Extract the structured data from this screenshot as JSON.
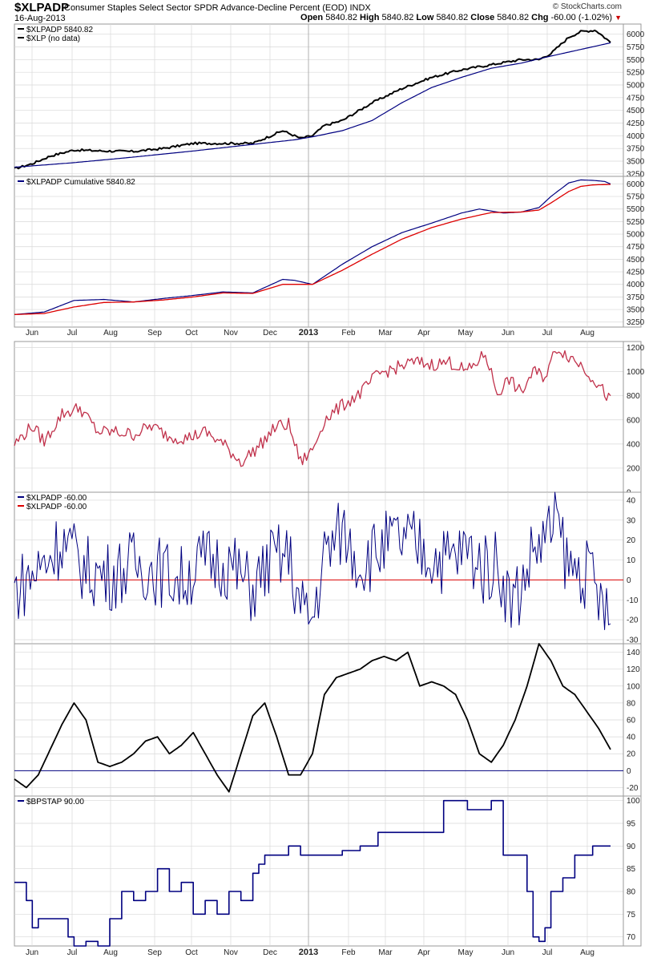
{
  "header": {
    "symbol": "$XLPADP",
    "description": "Consumer Staples Select Sector SPDR Advance-Decline Percent (EOD)",
    "exchange": "INDX",
    "date": "16-Aug-2013",
    "source": "© StockCharts.com",
    "open_label": "Open",
    "open": "5840.82",
    "high_label": "High",
    "high": "5840.82",
    "low_label": "Low",
    "low": "5840.82",
    "close_label": "Close",
    "close": "5840.82",
    "chg_label": "Chg",
    "chg": "-60.00 (-1.02%)",
    "down_color": "#cc0000"
  },
  "colors": {
    "black": "#000000",
    "navy": "#000080",
    "red": "#dd0000",
    "crimson": "#c0304a",
    "grid": "#d8d8d8"
  },
  "chart_data": [
    {
      "type": "line",
      "legend": [
        {
          "label": "$XLPADP  5840.82",
          "color": "#000000"
        },
        {
          "label": "$XLP (no data)",
          "color": "#000000"
        }
      ],
      "ylim": [
        3200,
        6200
      ],
      "yticks": [
        3250,
        3500,
        3750,
        4000,
        4250,
        4500,
        4750,
        5000,
        5250,
        5500,
        5750,
        6000
      ],
      "series": [
        {
          "color": "#000000",
          "width": 2,
          "volatility": 22,
          "x": [
            0,
            0.03,
            0.06,
            0.1,
            0.15,
            0.2,
            0.25,
            0.3,
            0.35,
            0.4,
            0.45,
            0.48,
            0.5,
            0.52,
            0.55,
            0.6,
            0.65,
            0.7,
            0.75,
            0.8,
            0.85,
            0.88,
            0.9,
            0.93,
            0.95,
            0.975,
            1.0
          ],
          "y": [
            3350,
            3450,
            3600,
            3720,
            3700,
            3690,
            3750,
            3850,
            3850,
            3850,
            4100,
            3950,
            4000,
            4200,
            4300,
            4650,
            4930,
            5150,
            5300,
            5400,
            5500,
            5500,
            5620,
            5940,
            6050,
            6080,
            5840
          ]
        },
        {
          "color": "#000080",
          "width": 1.2,
          "volatility": 0,
          "x": [
            0,
            0.1,
            0.2,
            0.3,
            0.4,
            0.47,
            0.5,
            0.55,
            0.6,
            0.65,
            0.7,
            0.75,
            0.8,
            0.85,
            0.9,
            0.95,
            1.0
          ],
          "y": [
            3380,
            3470,
            3580,
            3700,
            3830,
            3920,
            3980,
            4100,
            4300,
            4650,
            4950,
            5150,
            5330,
            5430,
            5570,
            5700,
            5830
          ]
        }
      ]
    },
    {
      "type": "line",
      "legend": [
        {
          "label": "$XLPADP  Cumulative 5840.82",
          "color": "#000080"
        }
      ],
      "ylim": [
        3150,
        6150
      ],
      "yticks": [
        3250,
        3500,
        3750,
        4000,
        4250,
        4500,
        4750,
        5000,
        5250,
        5500,
        5750,
        6000
      ],
      "xticks": [
        "Jun",
        "Jul",
        "Aug",
        "Sep",
        "Oct",
        "Nov",
        "Dec",
        "2013",
        "Feb",
        "Mar",
        "Apr",
        "May",
        "Jun",
        "Jul",
        "Aug"
      ],
      "series": [
        {
          "color": "#000080",
          "width": 1.2,
          "volatility": 0,
          "x": [
            0,
            0.05,
            0.1,
            0.15,
            0.2,
            0.25,
            0.3,
            0.35,
            0.4,
            0.45,
            0.47,
            0.5,
            0.55,
            0.6,
            0.65,
            0.7,
            0.75,
            0.78,
            0.82,
            0.85,
            0.88,
            0.9,
            0.93,
            0.95,
            0.97,
            0.99,
            1.0
          ],
          "y": [
            3400,
            3450,
            3680,
            3700,
            3650,
            3720,
            3780,
            3850,
            3830,
            4100,
            4080,
            4000,
            4400,
            4750,
            5030,
            5220,
            5420,
            5500,
            5420,
            5440,
            5530,
            5750,
            6020,
            6080,
            6070,
            6050,
            6000
          ]
        },
        {
          "color": "#dd0000",
          "width": 1.3,
          "volatility": 0,
          "x": [
            0,
            0.05,
            0.1,
            0.15,
            0.2,
            0.25,
            0.3,
            0.35,
            0.4,
            0.45,
            0.5,
            0.55,
            0.6,
            0.65,
            0.7,
            0.75,
            0.8,
            0.85,
            0.88,
            0.9,
            0.93,
            0.95,
            0.97,
            1.0
          ],
          "y": [
            3400,
            3420,
            3550,
            3640,
            3650,
            3690,
            3750,
            3830,
            3820,
            4000,
            4000,
            4280,
            4600,
            4900,
            5130,
            5300,
            5430,
            5440,
            5480,
            5620,
            5850,
            5950,
            5980,
            5990
          ]
        }
      ]
    },
    {
      "type": "line",
      "legend": [],
      "ylim": [
        0,
        1250
      ],
      "yticks": [
        0,
        200,
        400,
        600,
        800,
        1000,
        1200
      ],
      "series": [
        {
          "color": "#c0304a",
          "width": 1.3,
          "volatility": 55,
          "x": [
            0,
            0.03,
            0.05,
            0.08,
            0.11,
            0.14,
            0.17,
            0.2,
            0.23,
            0.26,
            0.29,
            0.32,
            0.35,
            0.38,
            0.41,
            0.44,
            0.46,
            0.48,
            0.5,
            0.52,
            0.55,
            0.58,
            0.61,
            0.64,
            0.67,
            0.7,
            0.73,
            0.76,
            0.79,
            0.81,
            0.83,
            0.85,
            0.87,
            0.89,
            0.91,
            0.93,
            0.95,
            0.97,
            1.0
          ],
          "y": [
            400,
            550,
            420,
            650,
            700,
            500,
            500,
            480,
            550,
            460,
            450,
            500,
            400,
            250,
            380,
            550,
            560,
            250,
            350,
            600,
            720,
            820,
            980,
            1030,
            1080,
            1060,
            1080,
            1000,
            1150,
            820,
            940,
            820,
            1000,
            960,
            1200,
            1130,
            1060,
            950,
            760
          ]
        }
      ]
    },
    {
      "type": "line",
      "legend": [
        {
          "label": "$XLPADP  -60.00",
          "color": "#000080"
        },
        {
          "label": "$XLPADP  -60.00",
          "color": "#dd0000"
        }
      ],
      "ylim": [
        -32,
        44
      ],
      "yticks": [
        -30,
        -20,
        -10,
        0,
        10,
        20,
        30,
        40
      ],
      "zero_line": {
        "value": 0,
        "color": "#dd0000"
      },
      "series": [
        {
          "color": "#000080",
          "width": 1,
          "volatility": 18,
          "x": [
            0,
            0.04,
            0.08,
            0.12,
            0.16,
            0.2,
            0.24,
            0.28,
            0.32,
            0.36,
            0.4,
            0.43,
            0.46,
            0.48,
            0.5,
            0.52,
            0.55,
            0.58,
            0.61,
            0.64,
            0.67,
            0.7,
            0.73,
            0.76,
            0.79,
            0.81,
            0.83,
            0.85,
            0.87,
            0.89,
            0.91,
            0.93,
            0.95,
            0.97,
            1.0
          ],
          "y": [
            -5,
            5,
            20,
            5,
            2,
            8,
            5,
            0,
            10,
            8,
            -5,
            10,
            12,
            -15,
            -20,
            12,
            25,
            8,
            15,
            20,
            18,
            12,
            10,
            15,
            5,
            10,
            -10,
            -5,
            15,
            20,
            30,
            5,
            5,
            0,
            -25
          ]
        }
      ]
    },
    {
      "type": "line",
      "legend": [],
      "ylim": [
        -30,
        150
      ],
      "yticks": [
        -20,
        0,
        20,
        40,
        60,
        80,
        100,
        120,
        140
      ],
      "zero_line": {
        "value": 0,
        "color": "#000080"
      },
      "series": [
        {
          "color": "#000000",
          "width": 1.8,
          "volatility": 0,
          "x": [
            0,
            0.02,
            0.04,
            0.06,
            0.08,
            0.1,
            0.12,
            0.14,
            0.16,
            0.18,
            0.2,
            0.22,
            0.24,
            0.26,
            0.28,
            0.3,
            0.32,
            0.34,
            0.36,
            0.38,
            0.4,
            0.42,
            0.44,
            0.46,
            0.48,
            0.5,
            0.52,
            0.54,
            0.56,
            0.58,
            0.6,
            0.62,
            0.64,
            0.66,
            0.68,
            0.7,
            0.72,
            0.74,
            0.76,
            0.78,
            0.8,
            0.82,
            0.84,
            0.86,
            0.88,
            0.9,
            0.92,
            0.94,
            0.96,
            0.98,
            1.0
          ],
          "y": [
            -10,
            -20,
            -5,
            25,
            55,
            80,
            60,
            10,
            5,
            10,
            20,
            35,
            40,
            20,
            30,
            45,
            20,
            -5,
            -25,
            20,
            65,
            80,
            40,
            -5,
            -5,
            20,
            90,
            110,
            115,
            120,
            130,
            135,
            130,
            140,
            100,
            105,
            100,
            90,
            60,
            20,
            10,
            30,
            60,
            100,
            150,
            130,
            100,
            90,
            70,
            50,
            25
          ]
        }
      ]
    },
    {
      "type": "line",
      "legend": [
        {
          "label": "$BPSTAP  90.00",
          "color": "#000080"
        }
      ],
      "ylim": [
        68,
        101
      ],
      "yticks": [
        70,
        75,
        80,
        85,
        90,
        95,
        100
      ],
      "step": true,
      "xticks": [
        "Jun",
        "Jul",
        "Aug",
        "Sep",
        "Oct",
        "Nov",
        "Dec",
        "2013",
        "Feb",
        "Mar",
        "Apr",
        "May",
        "Jun",
        "Jul",
        "Aug"
      ],
      "series": [
        {
          "color": "#000080",
          "width": 1.6,
          "volatility": 0,
          "x": [
            0,
            0.02,
            0.03,
            0.04,
            0.06,
            0.09,
            0.1,
            0.12,
            0.14,
            0.16,
            0.18,
            0.2,
            0.22,
            0.24,
            0.26,
            0.28,
            0.3,
            0.32,
            0.34,
            0.36,
            0.38,
            0.4,
            0.41,
            0.42,
            0.44,
            0.46,
            0.48,
            0.5,
            0.52,
            0.55,
            0.58,
            0.61,
            0.64,
            0.67,
            0.7,
            0.72,
            0.74,
            0.76,
            0.78,
            0.8,
            0.82,
            0.84,
            0.86,
            0.87,
            0.88,
            0.89,
            0.9,
            0.92,
            0.94,
            0.97,
            1.0
          ],
          "y": [
            82,
            78,
            72,
            74,
            74,
            70,
            68,
            69,
            68,
            74,
            80,
            78,
            80,
            85,
            80,
            82,
            75,
            78,
            75,
            80,
            78,
            84,
            86,
            88,
            88,
            90,
            88,
            88,
            88,
            89,
            90,
            93,
            93,
            93,
            93,
            100,
            100,
            98,
            98,
            100,
            88,
            88,
            80,
            70,
            69,
            72,
            80,
            83,
            88,
            90,
            90
          ]
        }
      ]
    }
  ]
}
